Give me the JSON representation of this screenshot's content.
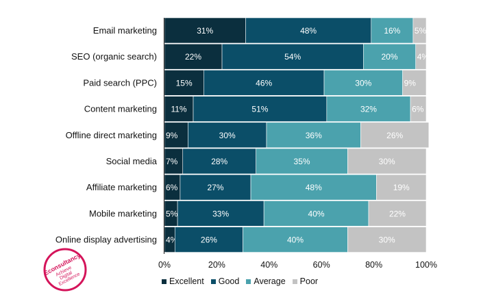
{
  "chart_data": {
    "type": "bar",
    "orientation": "horizontal",
    "stacked": true,
    "categories": [
      "Email marketing",
      "SEO (organic search)",
      "Paid search (PPC)",
      "Content marketing",
      "Offline direct marketing",
      "Social media",
      "Affiliate marketing",
      "Mobile marketing",
      "Online display advertising"
    ],
    "series": [
      {
        "name": "Excellent",
        "color": "#0b2f3e",
        "values": [
          31,
          22,
          15,
          11,
          9,
          7,
          6,
          5,
          4
        ]
      },
      {
        "name": "Good",
        "color": "#0b4e68",
        "values": [
          48,
          54,
          46,
          51,
          30,
          28,
          27,
          33,
          26
        ]
      },
      {
        "name": "Average",
        "color": "#4ba2ad",
        "values": [
          16,
          20,
          30,
          32,
          36,
          35,
          48,
          40,
          40
        ]
      },
      {
        "name": "Poor",
        "color": "#c3c3c3",
        "values": [
          5,
          4,
          9,
          6,
          26,
          30,
          19,
          22,
          30
        ]
      }
    ],
    "xlim": [
      0,
      100
    ],
    "x_ticks": [
      "0%",
      "20%",
      "40%",
      "60%",
      "80%",
      "100%"
    ],
    "value_suffix": "%",
    "legend_position": "bottom",
    "grid": false
  },
  "legend": {
    "items": [
      {
        "label": "Excellent",
        "color": "#0b2f3e"
      },
      {
        "label": "Good",
        "color": "#0b4e68"
      },
      {
        "label": "Average",
        "color": "#4ba2ad"
      },
      {
        "label": "Poor",
        "color": "#c3c3c3"
      }
    ]
  },
  "logo": {
    "brand": "Econsultancy",
    "tagline1": "Achieve",
    "tagline2": "Digital",
    "tagline3": "Excellence"
  }
}
